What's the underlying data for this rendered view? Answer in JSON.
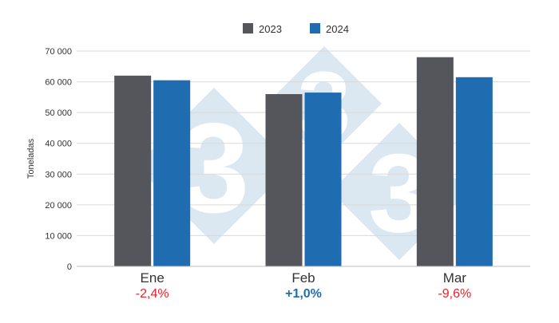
{
  "chart_data": {
    "type": "bar",
    "categories": [
      "Ene",
      "Feb",
      "Mar"
    ],
    "series": [
      {
        "name": "2023",
        "color": "#54565b",
        "values": [
          62000,
          56000,
          68000
        ]
      },
      {
        "name": "2024",
        "color": "#1f6db0",
        "values": [
          60500,
          56500,
          61500
        ]
      }
    ],
    "changes": [
      {
        "label": "-2,4%",
        "color": "#e8232a"
      },
      {
        "label": "+1,0%",
        "color": "#1f6db0"
      },
      {
        "label": "-9,6%",
        "color": "#e8232a"
      }
    ],
    "ylabel": "Toneladas",
    "ylim": [
      0,
      70000
    ],
    "yticks": [
      0,
      10000,
      20000,
      30000,
      40000,
      50000,
      60000,
      70000
    ],
    "ytick_labels": [
      "0",
      "10 000",
      "20 000",
      "30 000",
      "40 000",
      "50 000",
      "60 000",
      "70 000"
    ],
    "grid": true,
    "legend_position": "top-center",
    "watermark": {
      "text": "3",
      "icon": "333-logo-icon",
      "color": "#dce8f1"
    }
  }
}
